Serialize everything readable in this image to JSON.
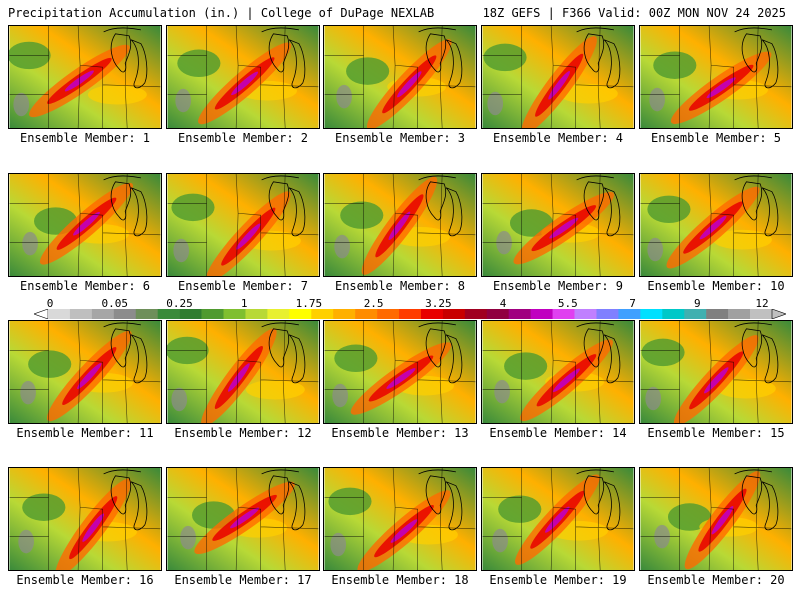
{
  "header": {
    "title_left": "Precipitation Accumulation (in.) | College of DuPage NEXLAB",
    "title_right": "18Z GEFS | F366 Valid: 00Z MON NOV 24 2025"
  },
  "colorbar": {
    "labels": [
      "0",
      "0.05",
      "0.25",
      "1",
      "1.75",
      "2.5",
      "3.25",
      "4",
      "5.5",
      "7",
      "9",
      "12"
    ],
    "colors": [
      "#d9d9d9",
      "#bfbfbf",
      "#a6a6a6",
      "#8c8c8c",
      "#6e8f5a",
      "#3a8a3a",
      "#2f7d2f",
      "#4f9a2f",
      "#7fbf2f",
      "#b8d936",
      "#e8f030",
      "#ffff00",
      "#ffd000",
      "#ffb000",
      "#ff8c00",
      "#ff6a00",
      "#ff3c00",
      "#e80000",
      "#c80000",
      "#a00020",
      "#900040",
      "#a00080",
      "#c000c0",
      "#e040f0",
      "#c080ff",
      "#8080ff",
      "#40a0ff",
      "#00e0ff",
      "#00c8c8",
      "#40b0b0",
      "#808080",
      "#a0a0a0",
      "#c0c0c0"
    ]
  },
  "members": [
    {
      "label": "Ensemble Member: 1"
    },
    {
      "label": "Ensemble Member: 2"
    },
    {
      "label": "Ensemble Member: 3"
    },
    {
      "label": "Ensemble Member: 4"
    },
    {
      "label": "Ensemble Member: 5"
    },
    {
      "label": "Ensemble Member: 6"
    },
    {
      "label": "Ensemble Member: 7"
    },
    {
      "label": "Ensemble Member: 8"
    },
    {
      "label": "Ensemble Member: 9"
    },
    {
      "label": "Ensemble Member: 10"
    },
    {
      "label": "Ensemble Member: 11"
    },
    {
      "label": "Ensemble Member: 12"
    },
    {
      "label": "Ensemble Member: 13"
    },
    {
      "label": "Ensemble Member: 14"
    },
    {
      "label": "Ensemble Member: 15"
    },
    {
      "label": "Ensemble Member: 16"
    },
    {
      "label": "Ensemble Member: 17"
    },
    {
      "label": "Ensemble Member: 18"
    },
    {
      "label": "Ensemble Member: 19"
    },
    {
      "label": "Ensemble Member: 20"
    }
  ]
}
